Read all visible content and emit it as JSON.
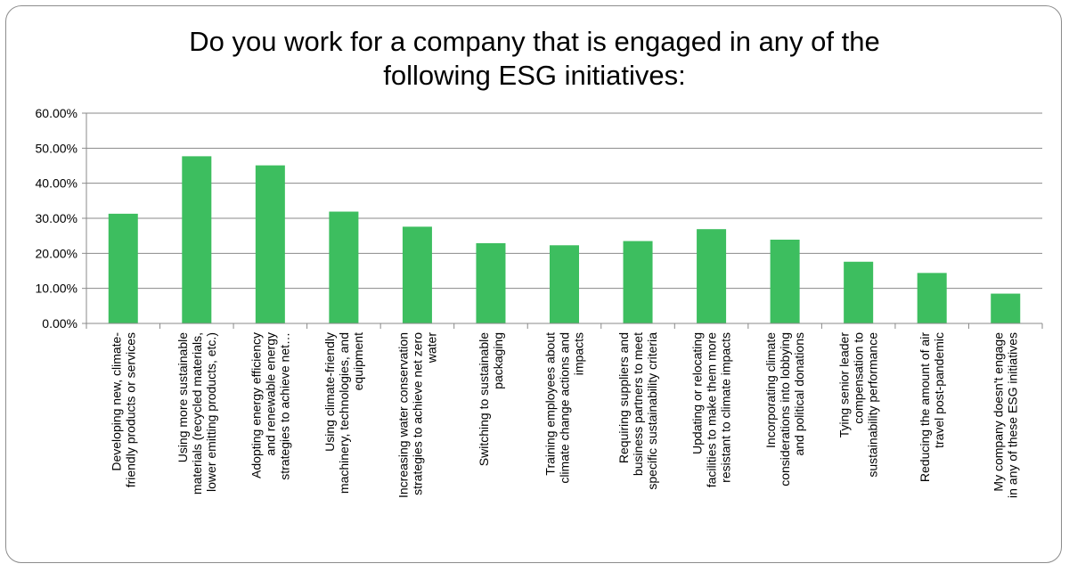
{
  "chart_data": {
    "type": "bar",
    "title_lines": [
      "Do you work for a company that is engaged in any of the",
      "following ESG initiatives:"
    ],
    "xlabel": "",
    "ylabel": "",
    "ylim": [
      0,
      0.6
    ],
    "yticks": [
      0,
      0.1,
      0.2,
      0.3,
      0.4,
      0.5,
      0.6
    ],
    "ytick_labels": [
      "0.00%",
      "10.00%",
      "20.00%",
      "30.00%",
      "40.00%",
      "50.00%",
      "60.00%"
    ],
    "grid": true,
    "legend": "none",
    "bar_color": "#3dbe5f",
    "categories": [
      [
        "Developing new, climate-",
        "friendly products or services"
      ],
      [
        "Using more sustainable",
        "materials (recycled materials,",
        "lower emitting products, etc.)"
      ],
      [
        "Adopting energy efficiency",
        "and renewable energy",
        "strategies to achieve net…"
      ],
      [
        "Using climate-friendly",
        "machinery, technologies, and",
        "equipment"
      ],
      [
        "Increasing water conservation",
        "strategies to achieve net zero",
        "water"
      ],
      [
        "Switching to sustainable",
        "packaging"
      ],
      [
        "Training employees about",
        "climate change actions and",
        "impacts"
      ],
      [
        "Requiring suppliers and",
        "business partners to meet",
        "specific sustainability criteria"
      ],
      [
        "Updating or relocating",
        "facilities to make them more",
        "resistant to climate impacts"
      ],
      [
        "Incorporating climate",
        "considerations into lobbying",
        "and political donations"
      ],
      [
        "Tying senior leader",
        "compensation to",
        "sustainability performance"
      ],
      [
        "Reducing the amount of air",
        "travel post-pandemic"
      ],
      [
        "My company doesn't engage",
        "in any of these ESG initiatives"
      ]
    ],
    "values": [
      0.313,
      0.477,
      0.451,
      0.319,
      0.276,
      0.229,
      0.223,
      0.235,
      0.269,
      0.239,
      0.176,
      0.144,
      0.085
    ]
  }
}
